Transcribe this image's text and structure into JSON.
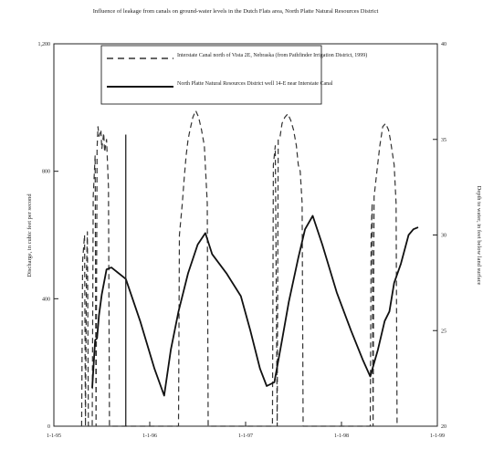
{
  "chart_data": {
    "type": "line",
    "title": "Influence of leakage from canals on ground-water levels in the Dutch Flats area, North Platte Natural Resources District",
    "xlabel": "",
    "ylabel": "Discharge, in cubic feet per second",
    "y2label": "Depth to water, in feet below land surface",
    "x_ticks": [
      "1-1-95",
      "1-1-96",
      "1-1-97",
      "1-1-98",
      "1-1-99"
    ],
    "x_range": [
      1995.0,
      1999.0
    ],
    "ylim": [
      0,
      1200
    ],
    "y_ticks": [
      "0",
      "400",
      "800",
      "1,200"
    ],
    "y2lim": [
      20,
      40
    ],
    "y2_ticks": [
      "20",
      "25",
      "30",
      "35",
      "40"
    ],
    "grid": false,
    "legend_position": "top-center",
    "series": [
      {
        "name": "Interstate Canal north of Vista 2E, Nebraska (from Pathfinder Irrigation District, 1999)",
        "style": "dashed",
        "axis": "left",
        "color": "#333333",
        "points": [
          [
            1995.29,
            0
          ],
          [
            1995.3,
            520
          ],
          [
            1995.32,
            600
          ],
          [
            1995.33,
            0
          ],
          [
            1995.34,
            480
          ],
          [
            1995.35,
            610
          ],
          [
            1995.36,
            0
          ],
          [
            1995.4,
            0
          ],
          [
            1995.41,
            720
          ],
          [
            1995.43,
            850
          ],
          [
            1995.44,
            0
          ],
          [
            1995.45,
            870
          ],
          [
            1995.46,
            940
          ],
          [
            1995.47,
            910
          ],
          [
            1995.49,
            930
          ],
          [
            1995.5,
            870
          ],
          [
            1995.52,
            920
          ],
          [
            1995.53,
            860
          ],
          [
            1995.55,
            900
          ],
          [
            1995.57,
            750
          ],
          [
            1995.58,
            0
          ],
          [
            1996.3,
            0
          ],
          [
            1996.31,
            600
          ],
          [
            1996.34,
            700
          ],
          [
            1996.36,
            780
          ],
          [
            1996.38,
            850
          ],
          [
            1996.4,
            900
          ],
          [
            1996.42,
            930
          ],
          [
            1996.45,
            970
          ],
          [
            1996.48,
            990
          ],
          [
            1996.51,
            970
          ],
          [
            1996.54,
            930
          ],
          [
            1996.57,
            880
          ],
          [
            1996.6,
            700
          ],
          [
            1996.61,
            0
          ],
          [
            1997.28,
            0
          ],
          [
            1997.29,
            820
          ],
          [
            1997.31,
            880
          ],
          [
            1997.33,
            0
          ],
          [
            1997.34,
            900
          ],
          [
            1997.36,
            910
          ],
          [
            1997.38,
            950
          ],
          [
            1997.41,
            970
          ],
          [
            1997.44,
            980
          ],
          [
            1997.47,
            960
          ],
          [
            1997.5,
            930
          ],
          [
            1997.53,
            880
          ],
          [
            1997.55,
            820
          ],
          [
            1997.57,
            800
          ],
          [
            1997.59,
            700
          ],
          [
            1997.6,
            0
          ],
          [
            1998.3,
            0
          ],
          [
            1998.31,
            600
          ],
          [
            1998.32,
            700
          ],
          [
            1998.33,
            0
          ],
          [
            1998.34,
            720
          ],
          [
            1998.37,
            800
          ],
          [
            1998.4,
            880
          ],
          [
            1998.43,
            940
          ],
          [
            1998.46,
            950
          ],
          [
            1998.49,
            930
          ],
          [
            1998.51,
            900
          ],
          [
            1998.53,
            860
          ],
          [
            1998.55,
            820
          ],
          [
            1998.57,
            700
          ],
          [
            1998.58,
            0
          ]
        ]
      },
      {
        "name": "North Platte Natural Resources District well 14-E near Interstate Canal",
        "style": "solid",
        "axis": "right",
        "color": "#111111",
        "points": [
          [
            1995.4,
            22.0
          ],
          [
            1995.43,
            24.5
          ],
          [
            1995.45,
            24.6
          ],
          [
            1995.47,
            25.8
          ],
          [
            1995.5,
            26.9
          ],
          [
            1995.55,
            28.2
          ],
          [
            1995.6,
            28.3
          ],
          [
            1995.75,
            27.7
          ],
          [
            1995.9,
            25.5
          ],
          [
            1996.05,
            23.0
          ],
          [
            1996.15,
            21.6
          ],
          [
            1996.22,
            24.0
          ],
          [
            1996.3,
            26.0
          ],
          [
            1996.4,
            28.0
          ],
          [
            1996.5,
            29.5
          ],
          [
            1996.58,
            30.1
          ],
          [
            1996.65,
            29.0
          ],
          [
            1996.8,
            28.0
          ],
          [
            1996.95,
            26.8
          ],
          [
            1997.05,
            25.0
          ],
          [
            1997.15,
            23.0
          ],
          [
            1997.22,
            22.1
          ],
          [
            1997.3,
            22.3
          ],
          [
            1997.38,
            24.5
          ],
          [
            1997.45,
            26.5
          ],
          [
            1997.55,
            28.8
          ],
          [
            1997.62,
            30.3
          ],
          [
            1997.7,
            31.0
          ],
          [
            1997.8,
            29.5
          ],
          [
            1997.95,
            27.0
          ],
          [
            1998.1,
            25.0
          ],
          [
            1998.22,
            23.5
          ],
          [
            1998.3,
            22.6
          ],
          [
            1998.38,
            24.0
          ],
          [
            1998.45,
            25.5
          ],
          [
            1998.5,
            26.0
          ],
          [
            1998.55,
            27.5
          ],
          [
            1998.62,
            28.5
          ],
          [
            1998.7,
            30.0
          ],
          [
            1998.75,
            30.3
          ],
          [
            1998.8,
            30.4
          ]
        ]
      }
    ]
  }
}
